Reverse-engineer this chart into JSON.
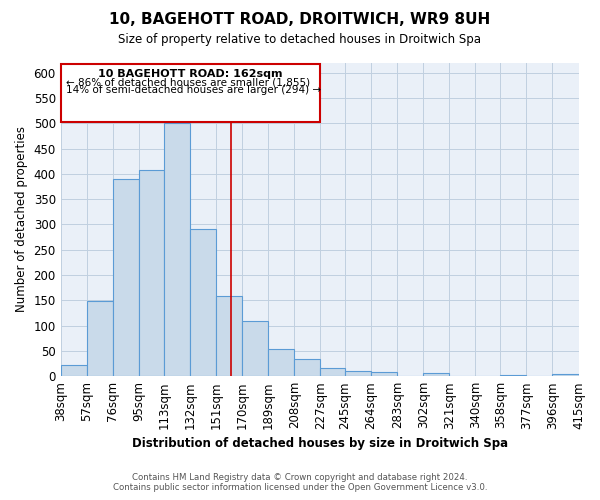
{
  "title": "10, BAGEHOTT ROAD, DROITWICH, WR9 8UH",
  "subtitle": "Size of property relative to detached houses in Droitwich Spa",
  "xlabel": "Distribution of detached houses by size in Droitwich Spa",
  "ylabel": "Number of detached properties",
  "bin_labels": [
    "38sqm",
    "57sqm",
    "76sqm",
    "95sqm",
    "113sqm",
    "132sqm",
    "151sqm",
    "170sqm",
    "189sqm",
    "208sqm",
    "227sqm",
    "245sqm",
    "264sqm",
    "283sqm",
    "302sqm",
    "321sqm",
    "340sqm",
    "358sqm",
    "377sqm",
    "396sqm",
    "415sqm"
  ],
  "bin_edges": [
    38,
    57,
    76,
    95,
    113,
    132,
    151,
    170,
    189,
    208,
    227,
    245,
    264,
    283,
    302,
    321,
    340,
    358,
    377,
    396,
    415
  ],
  "bar_heights": [
    23,
    148,
    390,
    408,
    500,
    290,
    158,
    110,
    54,
    33,
    16,
    10,
    8,
    0,
    7,
    0,
    0,
    3,
    0,
    4,
    0
  ],
  "bar_color": "#c9daea",
  "bar_edge_color": "#5b9bd5",
  "grid_color": "#c0cfe0",
  "background_color": "#eaf0f8",
  "property_value": 162,
  "vline_color": "#cc0000",
  "annotation_box_edge_color": "#cc0000",
  "annotation_line1": "10 BAGEHOTT ROAD: 162sqm",
  "annotation_line2": "← 86% of detached houses are smaller (1,855)",
  "annotation_line3": "14% of semi-detached houses are larger (294) →",
  "ylim": [
    0,
    620
  ],
  "yticks": [
    0,
    50,
    100,
    150,
    200,
    250,
    300,
    350,
    400,
    450,
    500,
    550,
    600
  ],
  "footer_line1": "Contains HM Land Registry data © Crown copyright and database right 2024.",
  "footer_line2": "Contains public sector information licensed under the Open Government Licence v3.0."
}
